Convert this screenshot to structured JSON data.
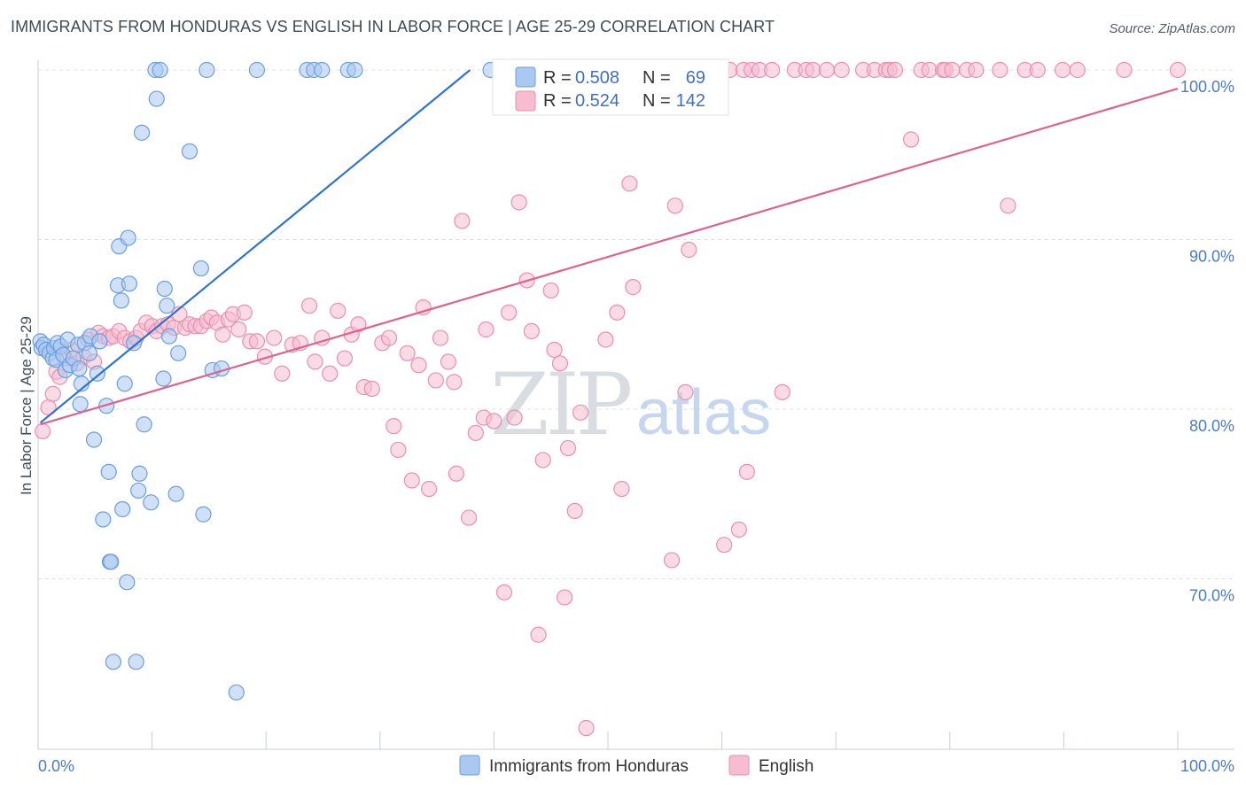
{
  "title": "IMMIGRANTS FROM HONDURAS VS ENGLISH IN LABOR FORCE | AGE 25-29 CORRELATION CHART",
  "source": "Source: ZipAtlas.com",
  "watermark": {
    "zip": "ZIP",
    "atlas": "atlas"
  },
  "colors": {
    "blue_fill": "#aac8f0",
    "blue_stroke": "#6a9ee0",
    "blue_line": "#2f72d0",
    "pink_fill": "#f6bcd0",
    "pink_stroke": "#ea8fae",
    "pink_line": "#e0608e",
    "grid": "#dde1e6",
    "tick_text": "#4a7ac8"
  },
  "legend": {
    "rows": [
      {
        "r_label": "R =",
        "r_value": "0.508",
        "n_label": "N =",
        "n_value": "69"
      },
      {
        "r_label": "R =",
        "r_value": "0.524",
        "n_label": "N =",
        "n_value": "142"
      }
    ]
  },
  "chart_data": {
    "type": "scatter",
    "xlabel": "",
    "ylabel": "In Labor Force | Age 25-29",
    "xlim": [
      0,
      100
    ],
    "ylim": [
      60.5,
      101.5
    ],
    "x_tick_labels": [
      "0.0%",
      "100.0%"
    ],
    "y_ticks": [
      70,
      80,
      90,
      100
    ],
    "y_tick_labels": [
      "70.0%",
      "80.0%",
      "90.0%",
      "100.0%"
    ],
    "grid": true,
    "legend_position": "top-center",
    "series": [
      {
        "name": "Immigrants from Honduras",
        "color": "#aac8f0",
        "R": 0.508,
        "N": 69,
        "trend": {
          "x": [
            0.2,
            37.9
          ],
          "y": [
            79.2,
            100.0
          ]
        },
        "points": [
          [
            0.2,
            84.0
          ],
          [
            0.3,
            83.6
          ],
          [
            0.5,
            83.8
          ],
          [
            0.7,
            83.5
          ],
          [
            1.0,
            83.3
          ],
          [
            1.3,
            83.0
          ],
          [
            1.4,
            83.6
          ],
          [
            1.6,
            82.9
          ],
          [
            1.7,
            83.9
          ],
          [
            2.0,
            83.7
          ],
          [
            2.2,
            83.2
          ],
          [
            2.4,
            82.3
          ],
          [
            2.6,
            84.1
          ],
          [
            2.8,
            82.6
          ],
          [
            3.1,
            83.0
          ],
          [
            3.5,
            83.8
          ],
          [
            3.6,
            82.4
          ],
          [
            3.7,
            80.3
          ],
          [
            3.8,
            81.5
          ],
          [
            4.1,
            83.9
          ],
          [
            4.5,
            83.3
          ],
          [
            4.6,
            84.3
          ],
          [
            4.9,
            78.2
          ],
          [
            5.2,
            82.1
          ],
          [
            5.4,
            84.0
          ],
          [
            5.7,
            73.5
          ],
          [
            6.0,
            80.2
          ],
          [
            6.2,
            76.3
          ],
          [
            6.3,
            71.0
          ],
          [
            6.4,
            71.0
          ],
          [
            6.6,
            65.1
          ],
          [
            7.0,
            87.3
          ],
          [
            7.1,
            89.6
          ],
          [
            7.3,
            86.4
          ],
          [
            7.4,
            74.1
          ],
          [
            7.6,
            81.5
          ],
          [
            7.8,
            69.8
          ],
          [
            7.9,
            90.1
          ],
          [
            8.0,
            87.4
          ],
          [
            8.4,
            83.9
          ],
          [
            8.6,
            65.1
          ],
          [
            8.8,
            75.2
          ],
          [
            8.9,
            76.2
          ],
          [
            9.1,
            96.3
          ],
          [
            9.3,
            79.1
          ],
          [
            9.9,
            74.5
          ],
          [
            10.3,
            100.0
          ],
          [
            10.4,
            98.3
          ],
          [
            10.7,
            100.0
          ],
          [
            11.0,
            81.8
          ],
          [
            11.1,
            87.1
          ],
          [
            11.3,
            86.1
          ],
          [
            11.5,
            84.3
          ],
          [
            12.1,
            75.0
          ],
          [
            12.3,
            83.3
          ],
          [
            13.3,
            95.2
          ],
          [
            14.3,
            88.3
          ],
          [
            14.5,
            73.8
          ],
          [
            14.8,
            100.0
          ],
          [
            15.3,
            82.3
          ],
          [
            16.1,
            82.4
          ],
          [
            17.4,
            63.3
          ],
          [
            19.2,
            100.0
          ],
          [
            23.6,
            100.0
          ],
          [
            24.2,
            100.0
          ],
          [
            24.9,
            100.0
          ],
          [
            27.2,
            100.0
          ],
          [
            27.8,
            100.0
          ],
          [
            39.7,
            100.0
          ]
        ]
      },
      {
        "name": "English",
        "color": "#f6bcd0",
        "R": 0.524,
        "N": 142,
        "trend": {
          "x": [
            0.2,
            100.0
          ],
          "y": [
            79.1,
            98.9
          ]
        },
        "points": [
          [
            0.4,
            78.7
          ],
          [
            0.9,
            80.1
          ],
          [
            1.3,
            80.9
          ],
          [
            1.6,
            82.2
          ],
          [
            1.9,
            81.9
          ],
          [
            2.4,
            83.0
          ],
          [
            2.9,
            83.5
          ],
          [
            3.4,
            82.7
          ],
          [
            4.0,
            83.1
          ],
          [
            4.4,
            84.1
          ],
          [
            4.9,
            82.8
          ],
          [
            5.3,
            84.5
          ],
          [
            5.7,
            84.3
          ],
          [
            6.2,
            84.2
          ],
          [
            6.6,
            84.3
          ],
          [
            7.1,
            84.6
          ],
          [
            7.6,
            84.2
          ],
          [
            8.1,
            84.0
          ],
          [
            8.6,
            84.2
          ],
          [
            9.0,
            84.6
          ],
          [
            9.5,
            85.1
          ],
          [
            10.0,
            84.9
          ],
          [
            10.4,
            84.6
          ],
          [
            10.9,
            84.9
          ],
          [
            11.4,
            85.0
          ],
          [
            11.9,
            84.8
          ],
          [
            12.4,
            85.6
          ],
          [
            12.9,
            84.8
          ],
          [
            13.3,
            85.0
          ],
          [
            13.8,
            84.9
          ],
          [
            14.3,
            84.9
          ],
          [
            14.8,
            85.2
          ],
          [
            15.2,
            85.4
          ],
          [
            15.7,
            85.1
          ],
          [
            16.2,
            84.4
          ],
          [
            16.7,
            85.3
          ],
          [
            17.1,
            85.6
          ],
          [
            17.6,
            84.7
          ],
          [
            18.1,
            85.7
          ],
          [
            18.6,
            84.0
          ],
          [
            19.2,
            84.0
          ],
          [
            19.9,
            83.1
          ],
          [
            20.7,
            84.2
          ],
          [
            21.4,
            82.1
          ],
          [
            22.3,
            83.8
          ],
          [
            23.0,
            83.9
          ],
          [
            23.8,
            86.1
          ],
          [
            24.3,
            82.8
          ],
          [
            24.9,
            84.2
          ],
          [
            25.6,
            82.1
          ],
          [
            26.3,
            85.8
          ],
          [
            26.9,
            83.0
          ],
          [
            27.5,
            84.4
          ],
          [
            28.1,
            85.0
          ],
          [
            28.6,
            81.3
          ],
          [
            29.3,
            81.2
          ],
          [
            30.2,
            83.9
          ],
          [
            30.8,
            84.2
          ],
          [
            31.2,
            79.0
          ],
          [
            31.6,
            77.6
          ],
          [
            32.4,
            83.3
          ],
          [
            32.8,
            75.8
          ],
          [
            33.4,
            82.6
          ],
          [
            33.8,
            86.0
          ],
          [
            34.3,
            75.3
          ],
          [
            34.9,
            81.7
          ],
          [
            35.3,
            84.2
          ],
          [
            36.0,
            82.8
          ],
          [
            36.5,
            81.6
          ],
          [
            36.7,
            76.2
          ],
          [
            37.2,
            91.1
          ],
          [
            37.8,
            73.6
          ],
          [
            38.4,
            78.6
          ],
          [
            39.1,
            79.5
          ],
          [
            39.3,
            84.7
          ],
          [
            40.0,
            79.3
          ],
          [
            40.9,
            69.2
          ],
          [
            41.3,
            85.7
          ],
          [
            41.8,
            79.5
          ],
          [
            42.2,
            92.2
          ],
          [
            42.9,
            87.6
          ],
          [
            43.3,
            84.6
          ],
          [
            43.9,
            66.7
          ],
          [
            44.3,
            77.0
          ],
          [
            45.0,
            87.0
          ],
          [
            45.3,
            83.5
          ],
          [
            45.8,
            82.7
          ],
          [
            46.2,
            68.9
          ],
          [
            46.5,
            77.7
          ],
          [
            47.1,
            74.0
          ],
          [
            47.6,
            79.8
          ],
          [
            48.1,
            61.2
          ],
          [
            49.1,
            100.0
          ],
          [
            49.8,
            84.1
          ],
          [
            50.8,
            85.7
          ],
          [
            51.2,
            75.3
          ],
          [
            51.9,
            93.3
          ],
          [
            52.2,
            87.2
          ],
          [
            53.2,
            100.0
          ],
          [
            54.6,
            100.0
          ],
          [
            55.6,
            71.1
          ],
          [
            55.9,
            92.0
          ],
          [
            56.8,
            81.0
          ],
          [
            57.1,
            89.4
          ],
          [
            58.3,
            100.0
          ],
          [
            59.1,
            100.0
          ],
          [
            60.2,
            72.0
          ],
          [
            60.7,
            100.0
          ],
          [
            61.5,
            72.9
          ],
          [
            61.9,
            100.0
          ],
          [
            62.2,
            76.3
          ],
          [
            62.6,
            100.0
          ],
          [
            63.3,
            100.0
          ],
          [
            64.4,
            100.0
          ],
          [
            65.3,
            81.0
          ],
          [
            66.4,
            100.0
          ],
          [
            67.4,
            100.0
          ],
          [
            68.0,
            100.0
          ],
          [
            69.2,
            100.0
          ],
          [
            70.5,
            100.0
          ],
          [
            72.4,
            100.0
          ],
          [
            73.4,
            100.0
          ],
          [
            74.4,
            100.0
          ],
          [
            74.7,
            100.0
          ],
          [
            75.2,
            100.0
          ],
          [
            76.6,
            95.9
          ],
          [
            77.5,
            100.0
          ],
          [
            78.2,
            100.0
          ],
          [
            79.4,
            100.0
          ],
          [
            79.6,
            100.0
          ],
          [
            80.2,
            100.0
          ],
          [
            81.5,
            100.0
          ],
          [
            82.3,
            100.0
          ],
          [
            84.4,
            100.0
          ],
          [
            85.1,
            92.0
          ],
          [
            86.6,
            100.0
          ],
          [
            87.7,
            100.0
          ],
          [
            89.9,
            100.0
          ],
          [
            91.2,
            100.0
          ],
          [
            95.3,
            100.0
          ],
          [
            100.0,
            100.0
          ]
        ]
      }
    ]
  }
}
